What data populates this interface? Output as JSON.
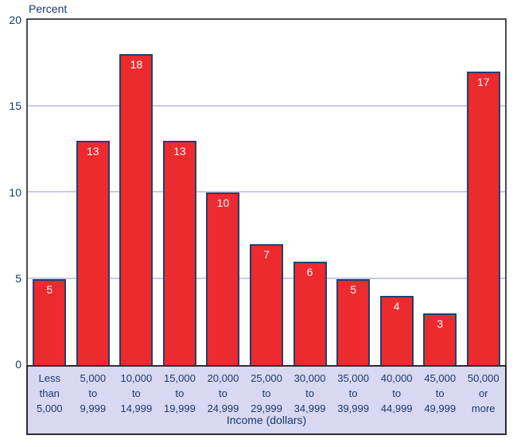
{
  "chart_data": {
    "type": "bar",
    "title": "Percent",
    "ylabel": "Percent",
    "xlabel": "Income (dollars)",
    "categories": [
      "Less than 5,000",
      "5,000 to 9,999",
      "10,000 to 14,999",
      "15,000 to 19,999",
      "20,000 to 24,999",
      "25,000 to 29,999",
      "30,000 to 34,999",
      "35,000 to 39,999",
      "40,000 to 44,999",
      "45,000 to 49,999",
      "50,000 or more"
    ],
    "category_lines": [
      [
        "Less",
        "than",
        "5,000"
      ],
      [
        "5,000",
        "to",
        "9,999"
      ],
      [
        "10,000",
        "to",
        "14,999"
      ],
      [
        "15,000",
        "to",
        "19,999"
      ],
      [
        "20,000",
        "to",
        "24,999"
      ],
      [
        "25,000",
        "to",
        "29,999"
      ],
      [
        "30,000",
        "to",
        "34,999"
      ],
      [
        "35,000",
        "to",
        "39,999"
      ],
      [
        "40,000",
        "to",
        "44,999"
      ],
      [
        "45,000",
        "to",
        "49,999"
      ],
      [
        "50,000",
        "or",
        "more"
      ]
    ],
    "values": [
      5,
      13,
      18,
      13,
      10,
      7,
      6,
      5,
      4,
      3,
      17
    ],
    "bar_labels": [
      "5",
      "13",
      "18",
      "13",
      "10",
      "7",
      "6",
      "5",
      "4",
      "3",
      "17"
    ],
    "ylim": [
      0,
      20
    ],
    "yticks": [
      20,
      15,
      10,
      5,
      0
    ],
    "gridlines": [
      5,
      10,
      15
    ],
    "grid": "horizontal",
    "legend": "none",
    "colors": {
      "bar_fill": "#ED2A2E",
      "bar_border": "#1F4170",
      "bar_label": "#FFFFFF",
      "axis_text": "#1B3A6B",
      "gridline": "#C9C9E8",
      "category_panel_bg": "#D8D8F2",
      "category_panel_border": "#2E2E2E",
      "plot_border": "#4D4D4D",
      "background": "#FFFFFF"
    }
  }
}
